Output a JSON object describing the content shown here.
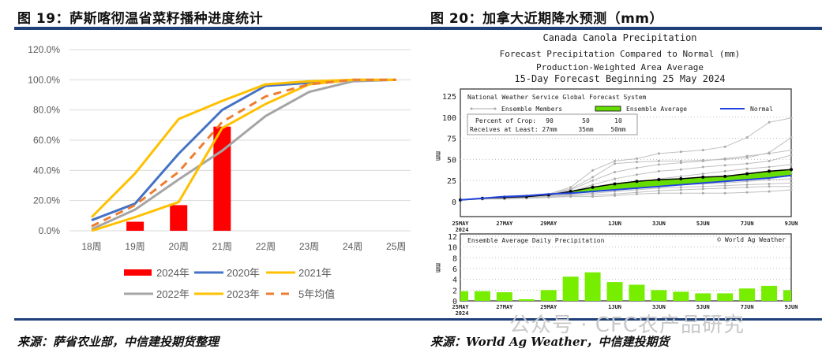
{
  "left": {
    "title": "图 19：萨斯喀彻温省菜籽播种进度统计",
    "source": "来源：萨省农业部，中信建投期货整理"
  },
  "right": {
    "title": "图 20：加拿大近期降水预测（mm）",
    "source": "来源：World Ag Weather，中信建投期货"
  },
  "watermark": "公众号 · CFC农产品研究",
  "chart_data": [
    {
      "type": "bar+line",
      "categories": [
        "18周",
        "19周",
        "20周",
        "21周",
        "22周",
        "23周",
        "24周",
        "25周"
      ],
      "yticks": [
        "0.0%",
        "20.0%",
        "40.0%",
        "60.0%",
        "80.0%",
        "100.0%",
        "120.0%"
      ],
      "ylim": [
        0,
        120
      ],
      "grid": true,
      "legend_position": "bottom",
      "bars": {
        "name": "2024年",
        "color": "#ff0000",
        "values": [
          null,
          6,
          17,
          69,
          null,
          null,
          null,
          null
        ]
      },
      "series": [
        {
          "name": "2020年",
          "color": "#4472c4",
          "dash": false,
          "values": [
            7,
            18,
            51,
            80,
            96,
            98,
            100,
            100
          ]
        },
        {
          "name": "2021年",
          "color": "#ffc000",
          "dash": false,
          "values": [
            9,
            38,
            74,
            86,
            97,
            99,
            100,
            100
          ]
        },
        {
          "name": "2022年",
          "color": "#a5a5a5",
          "dash": false,
          "values": [
            1,
            14,
            34,
            53,
            76,
            92,
            99,
            100
          ]
        },
        {
          "name": "2023年",
          "color": "#ffc000",
          "dash": false,
          "values": [
            0,
            9,
            19,
            68,
            84,
            97,
            100,
            100
          ]
        },
        {
          "name": "5年均值",
          "color": "#ed7d31",
          "dash": true,
          "values": [
            3,
            17,
            39,
            72,
            89,
            97,
            100,
            100
          ]
        }
      ]
    },
    {
      "type": "line",
      "title_lines": [
        "Canada Canola Precipitation",
        "Forecast Precipitation Compared to Normal (mm)",
        "Production-Weighted Area Average",
        "15-Day Forecast Beginning 25 May 2024"
      ],
      "panel_title": "National Weather Service Global Forecast System",
      "legend": {
        "members": "Ensemble Members",
        "average": "Ensemble Average",
        "normal": "Normal"
      },
      "crop_box": {
        "row1": [
          "Percent of Crop:",
          "90",
          "50",
          "10"
        ],
        "row2": [
          "Receives at Least:",
          "27mm",
          "35mm",
          "50mm"
        ]
      },
      "ylabel": "mm",
      "yticks": [
        0,
        25,
        50,
        75,
        100,
        125
      ],
      "ylim": [
        0,
        125
      ],
      "xticks": [
        "25MAY",
        "27MAY",
        "29MAY",
        "1JUN",
        "3JUN",
        "5JUN",
        "7JUN",
        "9JUN"
      ],
      "xtick_days": [
        0,
        2,
        4,
        7,
        9,
        11,
        13,
        15
      ],
      "year_label": "2024",
      "colors": {
        "members": "#c0c0c0",
        "average_fill": "#66dd00",
        "average_line": "#000000",
        "normal": "#2244dd"
      },
      "ensemble_average": [
        2,
        4,
        5,
        6,
        8,
        12,
        17,
        21,
        24,
        26,
        27,
        29,
        30,
        33,
        36,
        38
      ],
      "normal": [
        2,
        4,
        6,
        7,
        9,
        10,
        12,
        14,
        16,
        18,
        20,
        22,
        24,
        26,
        28,
        31
      ],
      "ensemble_members": [
        [
          2,
          4,
          6,
          7,
          9,
          17,
          37,
          48,
          51,
          57,
          59,
          61,
          65,
          76,
          94,
          99
        ],
        [
          2,
          4,
          5,
          6,
          9,
          15,
          29,
          45,
          47,
          48,
          48,
          49,
          50,
          52,
          58,
          76
        ],
        [
          2,
          4,
          6,
          7,
          8,
          14,
          25,
          35,
          40,
          44,
          46,
          48,
          51,
          54,
          57,
          61
        ],
        [
          2,
          3,
          5,
          6,
          8,
          12,
          20,
          27,
          32,
          36,
          38,
          41,
          43,
          45,
          48,
          55
        ],
        [
          2,
          4,
          5,
          6,
          7,
          11,
          16,
          20,
          23,
          27,
          30,
          33,
          36,
          39,
          41,
          44
        ],
        [
          2,
          3,
          4,
          5,
          7,
          10,
          13,
          16,
          19,
          22,
          24,
          26,
          28,
          30,
          32,
          34
        ],
        [
          2,
          3,
          4,
          5,
          6,
          9,
          12,
          14,
          16,
          18,
          20,
          21,
          22,
          24,
          26,
          27
        ],
        [
          2,
          3,
          4,
          5,
          6,
          8,
          10,
          12,
          14,
          16,
          17,
          18,
          19,
          20,
          21,
          22
        ],
        [
          2,
          3,
          4,
          4,
          5,
          7,
          8,
          9,
          11,
          13,
          14,
          15,
          16,
          17,
          18,
          18
        ],
        [
          2,
          3,
          3,
          4,
          5,
          6,
          6,
          7,
          9,
          10,
          10,
          10,
          10,
          11,
          12,
          14
        ]
      ]
    },
    {
      "type": "bar",
      "panel_title": "Ensemble Average Daily Precipitation",
      "credit": "© World Ag Weather",
      "ylabel": "mm",
      "yticks": [
        0,
        2,
        4,
        6,
        8,
        10,
        12
      ],
      "ylim": [
        0,
        12
      ],
      "xticks": [
        "25MAY",
        "27MAY",
        "29MAY",
        "1JUN",
        "3JUN",
        "5JUN",
        "7JUN",
        "9JUN"
      ],
      "xtick_days": [
        0,
        2,
        4,
        7,
        9,
        11,
        13,
        15
      ],
      "year_label": "2024",
      "color": "#77ee00",
      "values": [
        1.8,
        1.8,
        1.6,
        0.3,
        2.0,
        4.5,
        5.3,
        3.5,
        3.0,
        2.0,
        1.7,
        1.4,
        1.4,
        2.3,
        2.8,
        2.0
      ]
    }
  ]
}
